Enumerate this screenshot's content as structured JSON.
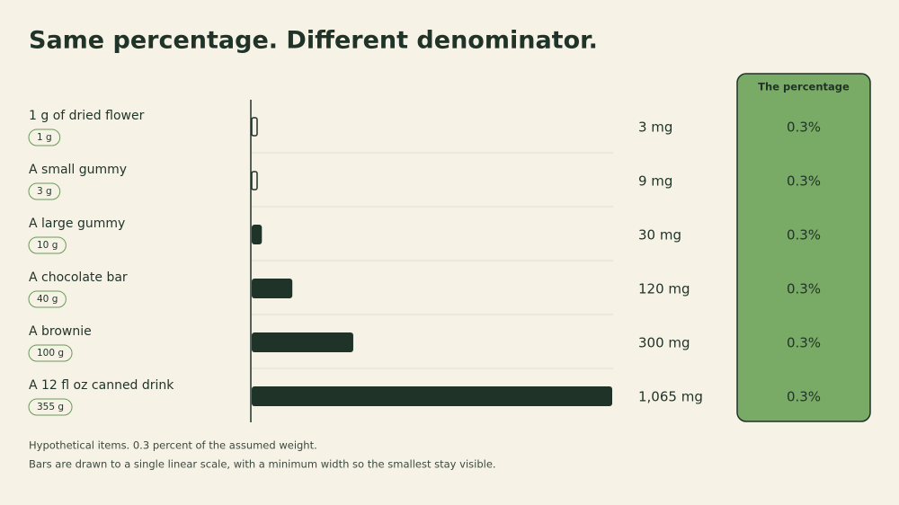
{
  "chart_data": {
    "type": "bar",
    "orientation": "horizontal",
    "title": "Same percentage. Different denominator.",
    "categories": [
      "1 g of dried flower",
      "A small gummy",
      "A large gummy",
      "A chocolate bar",
      "A brownie",
      "A 12 fl oz canned drink"
    ],
    "weights": [
      "1 g",
      "3 g",
      "10 g",
      "40 g",
      "100 g",
      "355 g"
    ],
    "values": [
      3,
      9,
      30,
      120,
      300,
      1065
    ],
    "value_labels": [
      "3 mg",
      "9 mg",
      "30 mg",
      "120 mg",
      "300 mg",
      "1,065 mg"
    ],
    "color": "#1f3328",
    "percentage_header": "The percentage",
    "percentages": [
      "0.3%",
      "0.3%",
      "0.3%",
      "0.3%",
      "0.3%",
      "0.3%"
    ],
    "notes": [
      "Hypothetical items. 0.3 percent of the assumed weight.",
      "Bars are drawn to a single linear scale, with a minimum width so the smallest stay visible."
    ]
  }
}
